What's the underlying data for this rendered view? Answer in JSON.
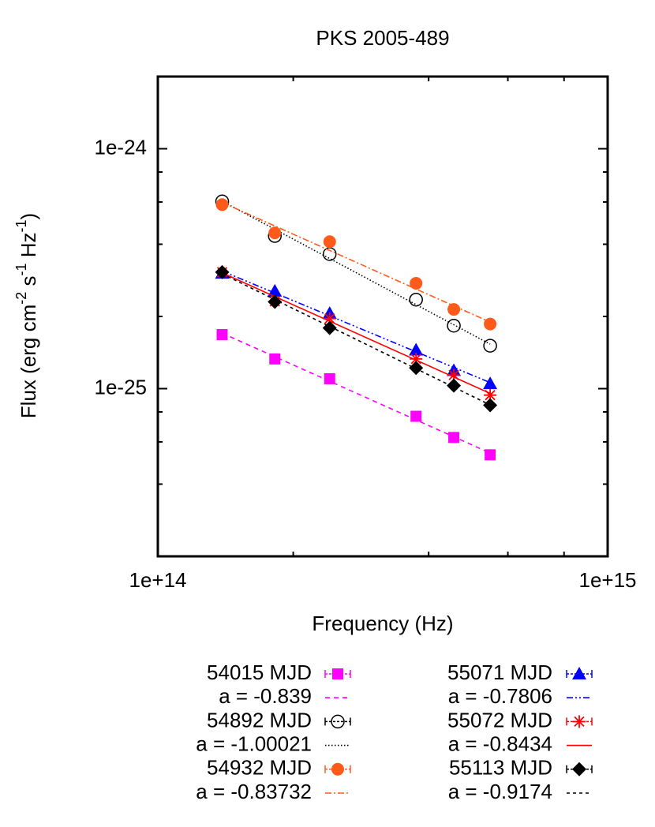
{
  "chart_data": {
    "type": "scatter",
    "title": "PKS 2005-489",
    "xlabel": "Frequency (Hz)",
    "ylabel_parts": [
      {
        "text": "Flux (erg cm"
      },
      {
        "text": "-2",
        "sup": true
      },
      {
        "text": " s"
      },
      {
        "text": "-1",
        "sup": true
      },
      {
        "text": " Hz"
      },
      {
        "text": "-1",
        "sup": true
      },
      {
        "text": ")"
      }
    ],
    "xlog": true,
    "ylog": true,
    "xlim": [
      100000000000000.0,
      1000000000000000.0
    ],
    "ylim": [
      2e-26,
      2e-24
    ],
    "xticks": [
      {
        "value": 100000000000000.0,
        "label": "1e+14"
      },
      {
        "value": 1000000000000000.0,
        "label": "1e+15"
      }
    ],
    "yticks": [
      {
        "value": 1e-25,
        "label": "1e-25"
      },
      {
        "value": 1e-24,
        "label": "1e-24"
      }
    ],
    "xminorticks": [
      200000000000000.0,
      400000000000000.0,
      600000000000000.0,
      800000000000000.0
    ],
    "yminorticks": [
      4e-26,
      6e-26,
      8e-26,
      2e-25,
      4e-25,
      6e-25,
      8e-25
    ],
    "series": [
      {
        "name": "54015 MJD",
        "color": "#ff00ff",
        "marker": "square",
        "fit_name": "a = -0.839",
        "fit_slope": -0.839,
        "fit_dash": "6 5",
        "x": [
          139000000000000.0,
          182000000000000.0,
          241000000000000.0,
          375000000000000.0,
          455000000000000.0,
          548000000000000.0
        ],
        "values": [
          1.68e-25,
          1.33e-25,
          1.1e-25,
          7.67e-26,
          6.26e-26,
          5.3e-26
        ]
      },
      {
        "name": "54892 MJD",
        "color": "#000000",
        "marker": "open-circle",
        "fit_name": "a = -1.00021",
        "fit_slope": -1.00021,
        "fit_dash": "1.5 2.5",
        "x": [
          139000000000000.0,
          182000000000000.0,
          241000000000000.0,
          375000000000000.0,
          455000000000000.0,
          548000000000000.0
        ],
        "values": [
          6.03e-25,
          4.33e-25,
          3.64e-25,
          2.35e-25,
          1.83e-25,
          1.51e-25
        ]
      },
      {
        "name": "54932 MJD",
        "color": "#ff5a1a",
        "marker": "circle",
        "fit_name": "a = -0.83732",
        "fit_slope": -0.83732,
        "fit_dash": "8 3 2 3",
        "x": [
          139000000000000.0,
          182000000000000.0,
          241000000000000.0,
          375000000000000.0,
          455000000000000.0,
          548000000000000.0
        ],
        "values": [
          5.85e-25,
          4.46e-25,
          4.1e-25,
          2.75e-25,
          2.14e-25,
          1.86e-25
        ]
      },
      {
        "name": "55071 MJD",
        "color": "#0000ff",
        "marker": "triangle",
        "fit_name": "a = -0.7806",
        "fit_slope": -0.7806,
        "fit_dash": "8 3 2 3 2 3",
        "x": [
          139000000000000.0,
          182000000000000.0,
          241000000000000.0,
          375000000000000.0,
          455000000000000.0,
          548000000000000.0
        ],
        "values": [
          3.03e-25,
          2.55e-25,
          2.06e-25,
          1.45e-25,
          1.19e-25,
          1.05e-25
        ]
      },
      {
        "name": "55072 MJD",
        "color": "#ff0000",
        "marker": "star",
        "fit_name": "a = -0.8434",
        "fit_slope": -0.8434,
        "fit_dash": "none",
        "x": [
          139000000000000.0,
          182000000000000.0,
          241000000000000.0,
          375000000000000.0,
          455000000000000.0,
          548000000000000.0
        ],
        "values": [
          3.06e-25,
          2.31e-25,
          1.96e-25,
          1.33e-25,
          1.14e-25,
          9.4e-26
        ]
      },
      {
        "name": "55113 MJD",
        "color": "#000000",
        "marker": "diamond",
        "fit_name": "a = -0.9174",
        "fit_slope": -0.9174,
        "fit_dash": "4 4",
        "x": [
          139000000000000.0,
          182000000000000.0,
          241000000000000.0,
          375000000000000.0,
          455000000000000.0,
          548000000000000.0
        ],
        "values": [
          3.06e-25,
          2.3e-25,
          1.79e-25,
          1.22e-25,
          1.03e-25,
          8.53e-26
        ]
      }
    ]
  }
}
